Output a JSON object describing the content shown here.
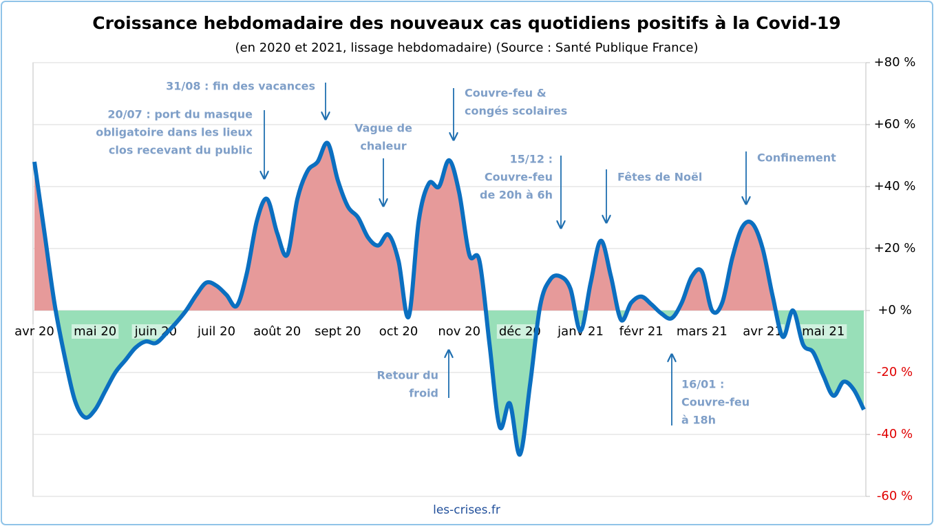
{
  "chart_data": {
    "type": "line",
    "title": "Croissance hebdomadaire des nouveaux cas quotidiens positifs à la Covid-19",
    "subtitle": "(en 2020 et 2021, lissage hebdomadaire) (Source : Santé Publique France)",
    "source": "les-crises.fr",
    "categories": [
      "avr 20",
      null,
      null,
      null,
      null,
      null,
      "mai 20",
      null,
      null,
      null,
      null,
      null,
      "juin 20",
      null,
      null,
      null,
      null,
      null,
      "juil 20",
      null,
      null,
      null,
      null,
      null,
      "août 20",
      null,
      null,
      null,
      null,
      null,
      "sept 20",
      null,
      null,
      null,
      null,
      null,
      "oct 20",
      null,
      null,
      null,
      null,
      null,
      "nov 20",
      null,
      null,
      null,
      null,
      null,
      "déc 20",
      null,
      null,
      null,
      null,
      null,
      "janv 21",
      null,
      null,
      null,
      null,
      null,
      "févr 21",
      null,
      null,
      null,
      null,
      null,
      "mars 21",
      null,
      null,
      null,
      null,
      null,
      "avr 21",
      null,
      null,
      null,
      null,
      null,
      "mai 21",
      null,
      null,
      null,
      null
    ],
    "series": [
      {
        "name": "Croissance hebdomadaire",
        "color": "#0b6fc0",
        "positive_color": "#e69a9a",
        "negative_color": "#98dfb8",
        "values": [
          48,
          25,
          2,
          -15,
          -29,
          -34.5,
          -32,
          -26,
          -20,
          -16,
          -12,
          -10,
          -10.5,
          -7.5,
          -4,
          0,
          5,
          9,
          8,
          5,
          1.5,
          12,
          29,
          36,
          25,
          18,
          36,
          45,
          48,
          54,
          42,
          33.5,
          30,
          23.5,
          21,
          24.5,
          16,
          -2,
          29,
          41,
          40,
          48.5,
          38,
          18,
          16,
          -11,
          -37.5,
          -30,
          -46.5,
          -24,
          1.5,
          10,
          11,
          7,
          -6.5,
          9,
          22.5,
          11,
          -3,
          2.5,
          4.5,
          2,
          -1,
          -2.5,
          2.5,
          11,
          12.5,
          0,
          2.5,
          17,
          27,
          28,
          20,
          4.5,
          -8.5,
          0,
          -11,
          -13.5,
          -21,
          -27.5,
          -23,
          -25.5,
          -32
        ]
      }
    ],
    "ylim": [
      -60,
      80
    ],
    "yticks": [
      {
        "value": -60,
        "label": "-60 %"
      },
      {
        "value": -40,
        "label": "-40 %"
      },
      {
        "value": -20,
        "label": "-20 %"
      },
      {
        "value": 0,
        "label": "+0 %"
      },
      {
        "value": 20,
        "label": "+20 %"
      },
      {
        "value": 40,
        "label": "+40 %"
      },
      {
        "value": 60,
        "label": "+60 %"
      },
      {
        "value": 80,
        "label": "+80 %"
      }
    ],
    "negative_tick_color": "#e00000",
    "grid": true,
    "y_axis_side": "right",
    "annotations": [
      {
        "lines": [
          "31/08 : fin des vacances"
        ]
      },
      {
        "lines": [
          "20/07 : port du masque",
          "obligatoire dans les lieux",
          "clos recevant du public"
        ]
      },
      {
        "lines": [
          "Vague de",
          "chaleur"
        ]
      },
      {
        "lines": [
          "Couvre-feu &",
          "congés scolaires"
        ]
      },
      {
        "lines": [
          "15/12 :",
          "Couvre-feu",
          "de 20h à 6h"
        ]
      },
      {
        "lines": [
          "Fêtes de Noël"
        ]
      },
      {
        "lines": [
          "Confinement"
        ]
      },
      {
        "lines": [
          "Retour du",
          "froid"
        ]
      },
      {
        "lines": [
          "16/01 :",
          "Couvre-feu",
          "à 18h"
        ]
      }
    ]
  }
}
